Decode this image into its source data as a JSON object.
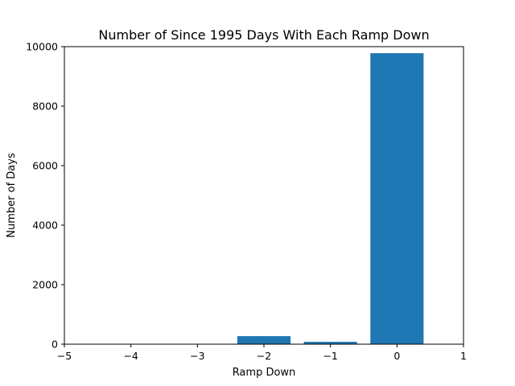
{
  "chart_data": {
    "type": "bar",
    "title": "Number of Since 1995 Days With Each Ramp Down",
    "xlabel": "Ramp Down",
    "ylabel": "Number of Days",
    "x": [
      -2,
      -1,
      0
    ],
    "values": [
      270,
      80,
      9780
    ],
    "bar_width": 0.8,
    "xlim": [
      -5,
      1
    ],
    "ylim": [
      0,
      10000
    ],
    "xticks": [
      -5,
      -4,
      -3,
      -2,
      -1,
      0,
      1
    ],
    "xtick_labels": [
      "−5",
      "−4",
      "−3",
      "−2",
      "−1",
      "0",
      "1"
    ],
    "yticks": [
      0,
      2000,
      4000,
      6000,
      8000,
      10000
    ],
    "ytick_labels": [
      "0",
      "2000",
      "4000",
      "6000",
      "8000",
      "10000"
    ],
    "grid": false,
    "colors": {
      "bar": "#1f77b4"
    }
  }
}
